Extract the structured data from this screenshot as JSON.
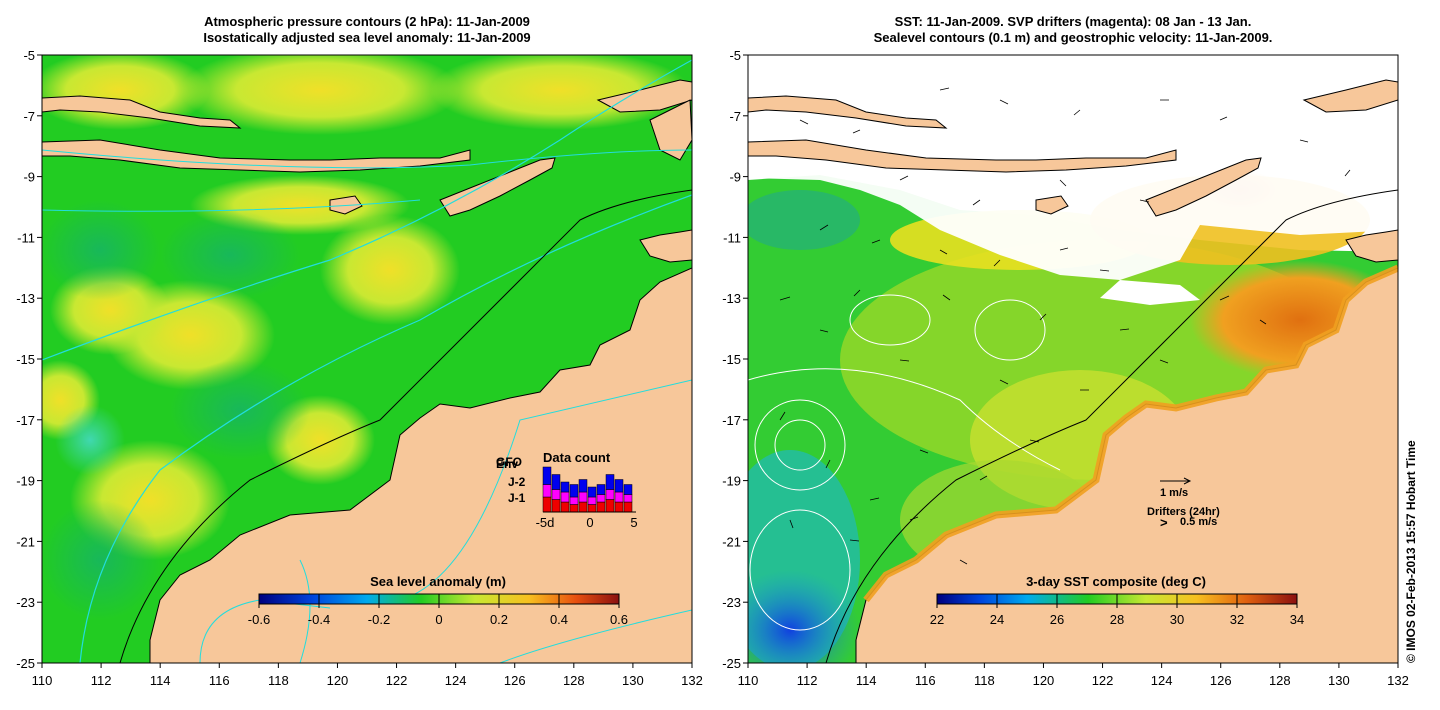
{
  "left_panel": {
    "title_line1": "Atmospheric pressure contours (2 hPa): 11-Jan-2009",
    "title_line2": "Isostatically adjusted sea level anomaly: 11-Jan-2009",
    "colorbar_title": "Sea level anomaly (m)",
    "colorbar_ticks": [
      "-0.6",
      "-0.4",
      "-0.2",
      "0",
      "0.2",
      "0.4",
      "0.6"
    ],
    "data_count": {
      "title": "Data count",
      "legend": [
        {
          "label": "Env",
          "color": "#0000ee"
        },
        {
          "label": "J-2",
          "color": "#ff00ff"
        },
        {
          "label": "J-1",
          "color": "#ee0000"
        }
      ],
      "overlap_label": "GFO",
      "x_ticks": [
        "-5d",
        "0",
        "5"
      ],
      "bars": [
        {
          "env": 0.35,
          "j2": 0.25,
          "j1": 0.3
        },
        {
          "env": 0.3,
          "j2": 0.2,
          "j1": 0.25
        },
        {
          "env": 0.2,
          "j2": 0.2,
          "j1": 0.2
        },
        {
          "env": 0.25,
          "j2": 0.15,
          "j1": 0.15
        },
        {
          "env": 0.25,
          "j2": 0.2,
          "j1": 0.2
        },
        {
          "env": 0.2,
          "j2": 0.15,
          "j1": 0.15
        },
        {
          "env": 0.2,
          "j2": 0.15,
          "j1": 0.2
        },
        {
          "env": 0.3,
          "j2": 0.2,
          "j1": 0.25
        },
        {
          "env": 0.25,
          "j2": 0.2,
          "j1": 0.2
        },
        {
          "env": 0.2,
          "j2": 0.15,
          "j1": 0.2
        }
      ]
    }
  },
  "right_panel": {
    "title_line1": "SST: 11-Jan-2009. SVP drifters (magenta): 08 Jan - 13 Jan.",
    "title_line2": "Sealevel contours (0.1 m) and geostrophic velocity: 11-Jan-2009.",
    "colorbar_title": "3-day SST composite (deg C)",
    "colorbar_ticks": [
      "22",
      "24",
      "26",
      "28",
      "30",
      "32",
      "34"
    ],
    "velocity_legend": "1 m/s",
    "drifters_legend": "Drifters (24hr)",
    "drifters_speed": "0.5 m/s",
    "drifter_symbol": ">"
  },
  "axes": {
    "x_ticks": [
      "110",
      "112",
      "114",
      "116",
      "118",
      "120",
      "122",
      "124",
      "126",
      "128",
      "130",
      "132"
    ],
    "y_ticks": [
      "-5",
      "-7",
      "-9",
      "-11",
      "-13",
      "-15",
      "-17",
      "-19",
      "-21",
      "-23",
      "-25"
    ],
    "lon_range": [
      110,
      132
    ],
    "lat_range": [
      -25,
      -5
    ]
  },
  "credit": "© IMOS 02-Feb-2013 15:57 Hobart Time",
  "colors": {
    "land": "#f7c79a",
    "ocean_green": "#22cc22",
    "anomaly_yellow": "#c8e832",
    "contour_cyan": "#22dddd",
    "sst_orange": "#f0a020"
  }
}
